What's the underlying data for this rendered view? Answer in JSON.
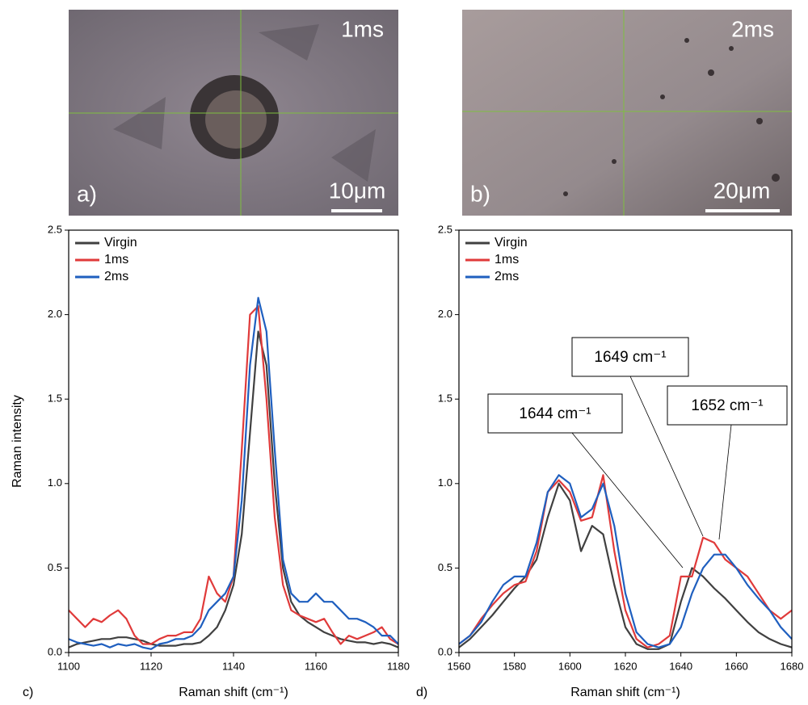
{
  "images": [
    {
      "label": "1ms",
      "panel": "a)",
      "scale": "10μm"
    },
    {
      "label": "2ms",
      "panel": "b)",
      "scale": "20μm"
    }
  ],
  "chart_data": [
    {
      "type": "line",
      "panel_label": "c)",
      "x_label": "Raman shift (cm⁻¹)",
      "y_label": "Raman intensity",
      "x": [
        1100,
        1102,
        1104,
        1106,
        1108,
        1110,
        1112,
        1114,
        1116,
        1118,
        1120,
        1122,
        1124,
        1126,
        1128,
        1130,
        1132,
        1134,
        1136,
        1138,
        1140,
        1142,
        1144,
        1146,
        1148,
        1150,
        1152,
        1154,
        1156,
        1158,
        1160,
        1162,
        1164,
        1166,
        1168,
        1170,
        1172,
        1174,
        1176,
        1178,
        1180
      ],
      "series": [
        {
          "name": "Virgin",
          "color": "#404040",
          "values": [
            0.03,
            0.05,
            0.06,
            0.07,
            0.08,
            0.08,
            0.09,
            0.09,
            0.08,
            0.07,
            0.05,
            0.04,
            0.04,
            0.04,
            0.05,
            0.05,
            0.06,
            0.1,
            0.15,
            0.25,
            0.4,
            0.7,
            1.3,
            1.9,
            1.7,
            1.0,
            0.5,
            0.3,
            0.22,
            0.18,
            0.15,
            0.12,
            0.1,
            0.08,
            0.07,
            0.06,
            0.06,
            0.05,
            0.06,
            0.05,
            0.03
          ]
        },
        {
          "name": "1ms",
          "color": "#e03a3a",
          "values": [
            0.25,
            0.2,
            0.15,
            0.2,
            0.18,
            0.22,
            0.25,
            0.2,
            0.1,
            0.05,
            0.05,
            0.08,
            0.1,
            0.1,
            0.12,
            0.12,
            0.2,
            0.45,
            0.35,
            0.3,
            0.45,
            1.2,
            2.0,
            2.05,
            1.5,
            0.8,
            0.4,
            0.25,
            0.22,
            0.2,
            0.18,
            0.2,
            0.12,
            0.05,
            0.1,
            0.08,
            0.1,
            0.12,
            0.15,
            0.08,
            0.05
          ]
        },
        {
          "name": "2ms",
          "color": "#1f5fbf",
          "values": [
            0.08,
            0.06,
            0.05,
            0.04,
            0.05,
            0.03,
            0.05,
            0.04,
            0.05,
            0.03,
            0.02,
            0.05,
            0.06,
            0.08,
            0.08,
            0.1,
            0.15,
            0.25,
            0.3,
            0.35,
            0.45,
            0.9,
            1.7,
            2.1,
            1.9,
            1.2,
            0.55,
            0.35,
            0.3,
            0.3,
            0.35,
            0.3,
            0.3,
            0.25,
            0.2,
            0.2,
            0.18,
            0.15,
            0.1,
            0.1,
            0.05
          ]
        }
      ],
      "xlim": [
        1100,
        1180
      ],
      "xticks": [
        1100,
        1120,
        1140,
        1160,
        1180
      ],
      "ylim": [
        0,
        2.5
      ],
      "yticks": [
        {
          "value": 0,
          "label": "0.0"
        },
        0.5,
        {
          "value": 1,
          "label": "1.0"
        },
        1.5,
        {
          "value": 2,
          "label": "2.0"
        },
        2.5
      ],
      "legend": "upper-left"
    },
    {
      "type": "line",
      "panel_label": "d)",
      "x_label": "Raman shift (cm⁻¹)",
      "x": [
        1560,
        1564,
        1568,
        1572,
        1576,
        1580,
        1584,
        1588,
        1592,
        1596,
        1600,
        1604,
        1608,
        1612,
        1616,
        1620,
        1624,
        1628,
        1632,
        1636,
        1640,
        1644,
        1648,
        1652,
        1656,
        1660,
        1664,
        1668,
        1672,
        1676,
        1680
      ],
      "series": [
        {
          "name": "Virgin",
          "color": "#404040",
          "values": [
            0.03,
            0.08,
            0.15,
            0.22,
            0.3,
            0.38,
            0.45,
            0.55,
            0.8,
            1.0,
            0.9,
            0.6,
            0.75,
            0.7,
            0.4,
            0.15,
            0.05,
            0.02,
            0.02,
            0.05,
            0.3,
            0.5,
            0.45,
            0.38,
            0.32,
            0.25,
            0.18,
            0.12,
            0.08,
            0.05,
            0.03
          ]
        },
        {
          "name": "1ms",
          "color": "#e03a3a",
          "values": [
            0.05,
            0.1,
            0.2,
            0.28,
            0.35,
            0.4,
            0.42,
            0.6,
            0.95,
            1.02,
            0.95,
            0.78,
            0.8,
            1.05,
            0.6,
            0.25,
            0.08,
            0.03,
            0.05,
            0.1,
            0.45,
            0.45,
            0.68,
            0.65,
            0.55,
            0.5,
            0.45,
            0.35,
            0.25,
            0.2,
            0.25
          ]
        },
        {
          "name": "2ms",
          "color": "#1f5fbf",
          "values": [
            0.05,
            0.1,
            0.18,
            0.3,
            0.4,
            0.45,
            0.45,
            0.65,
            0.95,
            1.05,
            1.0,
            0.8,
            0.85,
            1.0,
            0.75,
            0.35,
            0.12,
            0.05,
            0.03,
            0.05,
            0.15,
            0.35,
            0.5,
            0.58,
            0.58,
            0.5,
            0.4,
            0.32,
            0.25,
            0.15,
            0.08
          ]
        }
      ],
      "xlim": [
        1560,
        1680
      ],
      "xticks": [
        1560,
        1580,
        1600,
        1620,
        1640,
        1660,
        1680
      ],
      "ylim": [
        0,
        2.5
      ],
      "yticks": [
        {
          "value": 0,
          "label": "0.0"
        },
        0.5,
        {
          "value": 1,
          "label": "1.0"
        },
        1.5,
        {
          "value": 2,
          "label": "2.0"
        },
        2.5
      ],
      "legend": "upper-left",
      "annotations": [
        {
          "text": "1649 cm⁻¹"
        },
        {
          "text": "1644 cm⁻¹"
        },
        {
          "text": "1652 cm⁻¹"
        }
      ]
    }
  ]
}
